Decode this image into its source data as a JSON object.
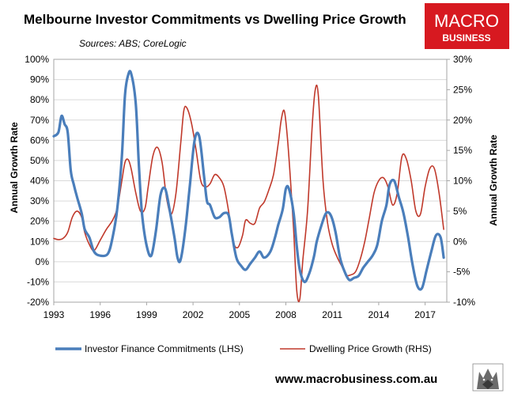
{
  "chart_data": {
    "type": "line",
    "title": "Melbourne Investor Commitments vs Dwelling Price Growth",
    "subtitle": "Sources: ABS; CoreLogic",
    "ylabel_left": "Annual Growth Rate",
    "ylabel_right": "Annual Growth Rate",
    "ylim_left": [
      -20,
      100
    ],
    "ylim_right": [
      -10,
      30
    ],
    "xlim": [
      1993,
      2018.4
    ],
    "x_ticks": [
      "1993",
      "1996",
      "1999",
      "2002",
      "2005",
      "2008",
      "2011",
      "2014",
      "2017"
    ],
    "y_ticks_left": [
      "100%",
      "90%",
      "80%",
      "70%",
      "60%",
      "50%",
      "40%",
      "30%",
      "20%",
      "10%",
      "0%",
      "-10%",
      "-20%"
    ],
    "y_ticks_right": [
      "30%",
      "25%",
      "20%",
      "15%",
      "10%",
      "5%",
      "0%",
      "-5%",
      "-10%"
    ],
    "grid": true,
    "legend_position": "bottom",
    "series": [
      {
        "name": "Investor Finance Commitments (LHS)",
        "axis": "left",
        "color": "#4a7ebb",
        "x": [
          1993.0,
          1993.3,
          1993.5,
          1993.7,
          1993.9,
          1994.1,
          1994.3,
          1994.5,
          1994.8,
          1995.0,
          1995.3,
          1995.6,
          1996.0,
          1996.5,
          1996.8,
          1997.1,
          1997.4,
          1997.6,
          1997.8,
          1998.0,
          1998.3,
          1998.5,
          1998.7,
          1999.0,
          1999.3,
          1999.6,
          1999.9,
          2000.2,
          2000.5,
          2000.8,
          2001.0,
          2001.2,
          2001.5,
          2001.8,
          2002.1,
          2002.4,
          2002.7,
          2002.9,
          2003.1,
          2003.4,
          2003.7,
          2004.0,
          2004.3,
          2004.5,
          2004.8,
          2005.1,
          2005.4,
          2005.7,
          2006.0,
          2006.3,
          2006.6,
          2007.0,
          2007.3,
          2007.5,
          2007.8,
          2008.0,
          2008.2,
          2008.5,
          2008.7,
          2008.9,
          2009.2,
          2009.5,
          2009.8,
          2010.0,
          2010.3,
          2010.6,
          2010.9,
          2011.2,
          2011.5,
          2011.8,
          2012.1,
          2012.4,
          2012.7,
          2013.0,
          2013.3,
          2013.6,
          2013.9,
          2014.2,
          2014.5,
          2014.7,
          2015.0,
          2015.3,
          2015.6,
          2015.9,
          2016.2,
          2016.5,
          2016.8,
          2017.1,
          2017.4,
          2017.7,
          2018.0,
          2018.2
        ],
        "y": [
          62,
          64,
          72,
          68,
          64,
          45,
          38,
          32,
          24,
          16,
          12,
          5,
          3,
          4,
          12,
          26,
          52,
          82,
          92,
          93,
          78,
          48,
          24,
          8,
          3,
          15,
          33,
          36,
          25,
          12,
          2,
          1,
          16,
          38,
          60,
          62,
          43,
          30,
          28,
          22,
          22,
          24,
          23,
          14,
          2,
          -2,
          -4,
          -1,
          2,
          5,
          2,
          5,
          12,
          18,
          26,
          36,
          36,
          24,
          8,
          -4,
          -10,
          -6,
          2,
          10,
          18,
          24,
          23,
          15,
          2,
          -5,
          -9,
          -8,
          -7,
          -3,
          0,
          3,
          8,
          20,
          28,
          38,
          40,
          32,
          24,
          12,
          -2,
          -12,
          -13,
          -4,
          5,
          13,
          12,
          2
        ],
        "data_label": null
      },
      {
        "name": "Dwelling Price Growth (RHS)",
        "axis": "right",
        "color": "#c0392b",
        "x": [
          1993.0,
          1993.3,
          1993.6,
          1993.9,
          1994.2,
          1994.5,
          1994.8,
          1995.0,
          1995.3,
          1995.6,
          1996.0,
          1996.4,
          1996.8,
          1997.1,
          1997.4,
          1997.6,
          1997.8,
          1998.0,
          1998.3,
          1998.6,
          1998.9,
          1999.1,
          1999.4,
          1999.7,
          2000.0,
          2000.3,
          2000.6,
          2000.9,
          2001.2,
          2001.4,
          2001.6,
          2001.9,
          2002.2,
          2002.5,
          2002.8,
          2003.1,
          2003.4,
          2003.7,
          2004.0,
          2004.3,
          2004.6,
          2004.9,
          2005.2,
          2005.4,
          2005.7,
          2006.0,
          2006.3,
          2006.6,
          2006.9,
          2007.2,
          2007.5,
          2007.7,
          2007.9,
          2008.1,
          2008.3,
          2008.5,
          2008.7,
          2008.9,
          2009.1,
          2009.4,
          2009.7,
          2009.9,
          2010.1,
          2010.4,
          2010.7,
          2011.0,
          2011.3,
          2011.6,
          2011.9,
          2012.2,
          2012.5,
          2012.8,
          2013.1,
          2013.4,
          2013.7,
          2014.0,
          2014.3,
          2014.6,
          2014.9,
          2015.2,
          2015.5,
          2015.8,
          2016.1,
          2016.4,
          2016.7,
          2017.0,
          2017.3,
          2017.6,
          2017.9,
          2018.2
        ],
        "y": [
          0.5,
          0.3,
          0.5,
          1.5,
          4.0,
          5.0,
          4.0,
          1.5,
          -0.5,
          -1.5,
          0.2,
          2.0,
          3.5,
          5.5,
          10.0,
          13.0,
          13.5,
          12.0,
          8.0,
          5.0,
          5.5,
          9.0,
          14.0,
          15.5,
          13.0,
          7.0,
          4.5,
          8.0,
          16.0,
          21.5,
          22.0,
          19.5,
          15.0,
          10.0,
          9.0,
          9.5,
          11.0,
          10.5,
          9.0,
          5.0,
          0.0,
          -1.0,
          1.0,
          3.5,
          3.0,
          3.0,
          5.5,
          6.5,
          8.5,
          11.0,
          16.0,
          20.0,
          21.5,
          17.0,
          10.0,
          2.0,
          -8.0,
          -9.5,
          -3.0,
          5.0,
          19.0,
          25.0,
          24.0,
          10.0,
          3.0,
          -0.5,
          -2.5,
          -4.0,
          -5.5,
          -5.5,
          -5.0,
          -3.0,
          0.0,
          4.0,
          8.0,
          10.0,
          10.5,
          9.0,
          6.0,
          8.0,
          14.0,
          13.5,
          10.0,
          5.0,
          4.5,
          9.0,
          12.0,
          12.0,
          8.0,
          2.0
        ]
      }
    ]
  },
  "footer": {
    "website": "www.macrobusiness.com.au"
  },
  "logo": {
    "line1": "MACRO",
    "line2": "BUSINESS",
    "background_color": "#d71920"
  }
}
